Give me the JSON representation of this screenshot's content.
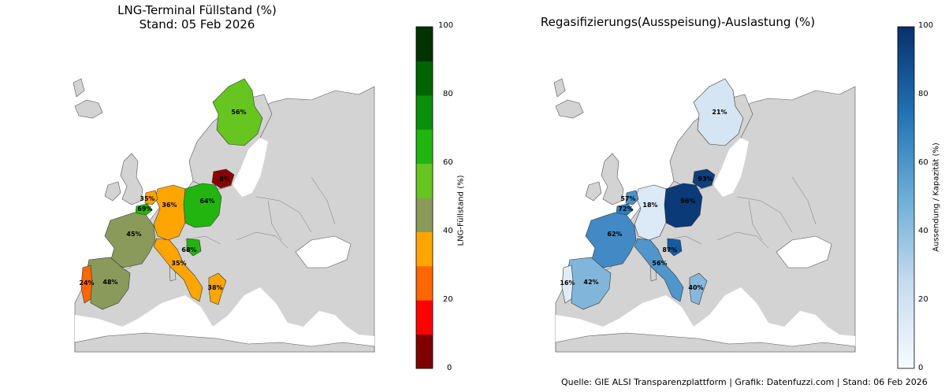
{
  "left": {
    "title_line1": "LNG-Terminal Füllstand (%)",
    "title_line2": "Stand: 05 Feb 2026",
    "colorbar": {
      "label": "LNG-Füllstand (%)",
      "ticks": [
        "0",
        "20",
        "40",
        "60",
        "80",
        "100"
      ],
      "colors": [
        "#7f0000",
        "#ff0000",
        "#ff6600",
        "#ffa500",
        "#8a9a5b",
        "#66c51f",
        "#22b50f",
        "#0a8f0a",
        "#006400",
        "#003300"
      ]
    },
    "countries": [
      {
        "name": "Finland",
        "value": "56%",
        "color": "#66c51f"
      },
      {
        "name": "Lithuania",
        "value": "8%",
        "color": "#8b0000"
      },
      {
        "name": "Poland",
        "value": "64%",
        "color": "#22b50f"
      },
      {
        "name": "Germany",
        "value": "36%",
        "color": "#ffa500"
      },
      {
        "name": "Netherlands",
        "value": "35%",
        "color": "#ffa500"
      },
      {
        "name": "Belgium",
        "value": "69%",
        "color": "#22b50f"
      },
      {
        "name": "France",
        "value": "45%",
        "color": "#8a9a5b"
      },
      {
        "name": "Italy",
        "value": "35%",
        "color": "#ffa500"
      },
      {
        "name": "Croatia",
        "value": "68%",
        "color": "#22b50f"
      },
      {
        "name": "Greece",
        "value": "38%",
        "color": "#ffa500"
      },
      {
        "name": "Spain",
        "value": "48%",
        "color": "#8a9a5b"
      },
      {
        "name": "Portugal",
        "value": "24%",
        "color": "#ff6600"
      }
    ]
  },
  "right": {
    "title": "Regasifizierungs(Ausspeisung)-Auslastung (%)",
    "colorbar": {
      "label": "Aussendung / Kapazität (%)",
      "ticks": [
        "0",
        "20",
        "40",
        "60",
        "80",
        "100"
      ]
    },
    "countries": [
      {
        "name": "Finland",
        "value": "21%",
        "color": "#d6e5f4"
      },
      {
        "name": "Lithuania",
        "value": "93%",
        "color": "#0d3f80"
      },
      {
        "name": "Poland",
        "value": "96%",
        "color": "#0a3a78"
      },
      {
        "name": "Germany",
        "value": "18%",
        "color": "#dce9f6"
      },
      {
        "name": "Netherlands",
        "value": "57%",
        "color": "#4e91c9"
      },
      {
        "name": "Belgium",
        "value": "72%",
        "color": "#2e7ebc"
      },
      {
        "name": "France",
        "value": "62%",
        "color": "#428ac6"
      },
      {
        "name": "Italy",
        "value": "56%",
        "color": "#5096cb"
      },
      {
        "name": "Croatia",
        "value": "87%",
        "color": "#115ca4"
      },
      {
        "name": "Greece",
        "value": "40%",
        "color": "#86b8dc"
      },
      {
        "name": "Spain",
        "value": "42%",
        "color": "#82b5da"
      },
      {
        "name": "Portugal",
        "value": "16%",
        "color": "#e1ecf7"
      }
    ]
  },
  "footer": "Quelle: GIE ALSI Transparenzplattform | Grafik: Datenfuzzi.com | Stand: 06 Feb 2026"
}
